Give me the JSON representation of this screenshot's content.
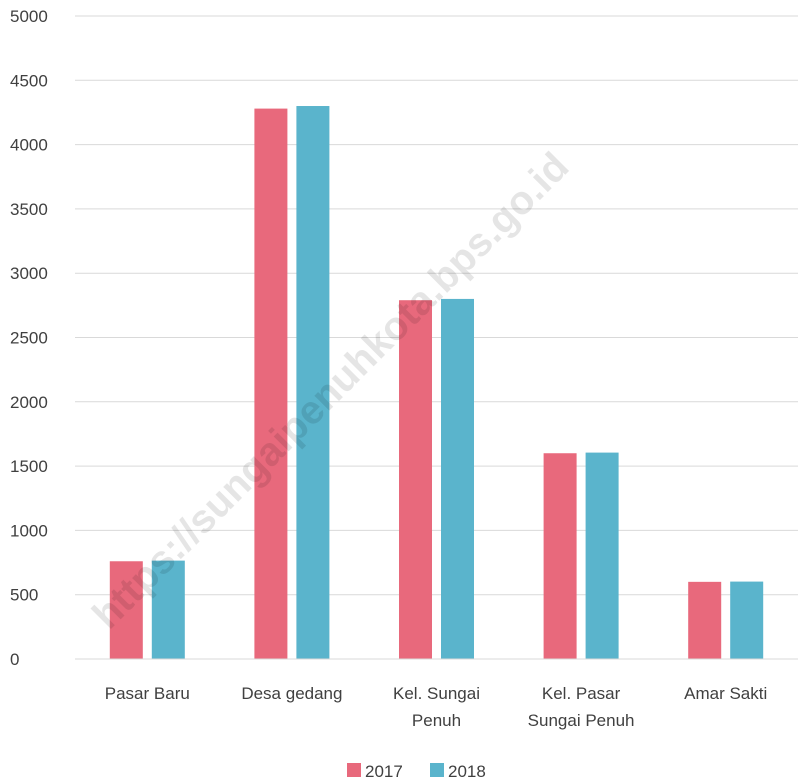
{
  "watermark": "https://sungaipenuhkota.bps.go.id",
  "chart_data": {
    "type": "bar",
    "categories": [
      [
        "Pasar Baru"
      ],
      [
        "Desa gedang"
      ],
      [
        "Kel. Sungai",
        "Penuh"
      ],
      [
        "Kel. Pasar",
        "Sungai Penuh"
      ],
      [
        "Amar Sakti"
      ]
    ],
    "series": [
      {
        "name": "2017",
        "color": "#e8697c",
        "values": [
          760,
          4280,
          2790,
          1600,
          600
        ]
      },
      {
        "name": "2018",
        "color": "#5ab4cc",
        "values": [
          765,
          4300,
          2800,
          1605,
          602
        ]
      }
    ],
    "yticks": [
      0,
      500,
      1000,
      1500,
      2000,
      2500,
      3000,
      3500,
      4000,
      4500,
      5000
    ],
    "ylim": [
      0,
      5000
    ],
    "grid": true,
    "legend_position": "bottom"
  }
}
